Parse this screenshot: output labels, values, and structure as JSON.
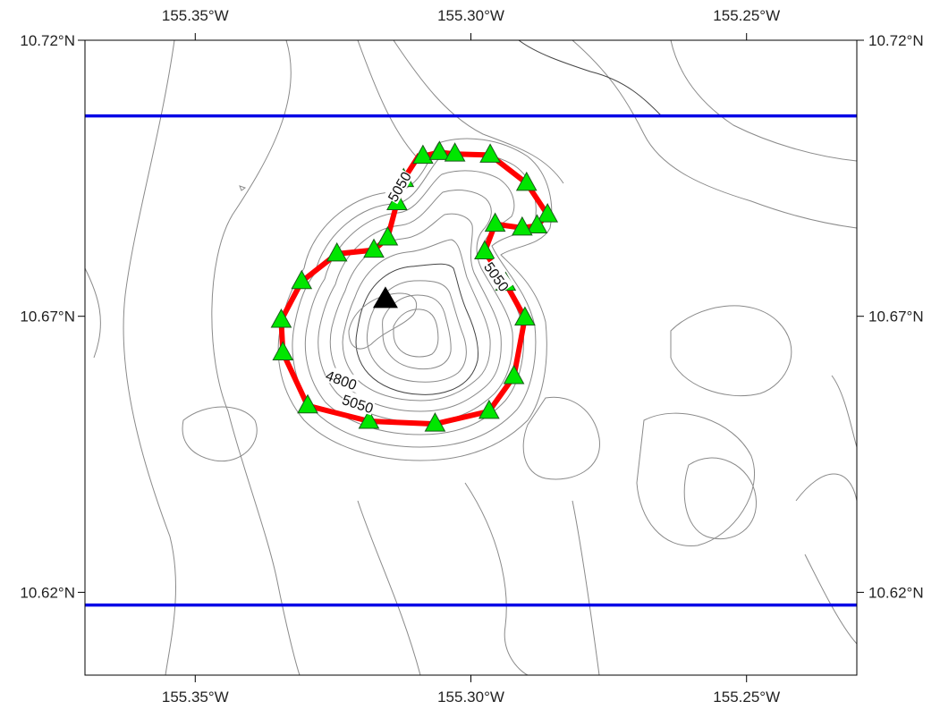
{
  "map": {
    "extent": {
      "lon_min": -155.37,
      "lon_max": -155.23,
      "lat_min": 10.605,
      "lat_max": 10.72
    },
    "lon_ticks": [
      {
        "value": -155.35,
        "label": "155.35°W"
      },
      {
        "value": -155.3,
        "label": "155.30°W"
      },
      {
        "value": -155.25,
        "label": "155.25°W"
      }
    ],
    "lat_ticks": [
      {
        "value": 10.72,
        "label": "10.72°N"
      },
      {
        "value": 10.67,
        "label": "10.67°N"
      },
      {
        "value": 10.62,
        "label": "10.62°N"
      }
    ],
    "boundary_lines": {
      "color": "#0000e6",
      "lats": [
        10.7063,
        10.6177
      ]
    },
    "track": {
      "color": "#ff0000",
      "points": [
        [
          -155.3087,
          10.699
        ],
        [
          -155.3057,
          10.6997
        ],
        [
          -155.3029,
          10.6994
        ],
        [
          -155.2965,
          10.6992
        ],
        [
          -155.2899,
          10.6941
        ],
        [
          -155.2861,
          10.6884
        ],
        [
          -155.288,
          10.6864
        ],
        [
          -155.2907,
          10.686
        ],
        [
          -155.2956,
          10.6867
        ],
        [
          -155.2975,
          10.6817
        ],
        [
          -155.2937,
          10.676
        ],
        [
          -155.2902,
          10.6697
        ],
        [
          -155.2922,
          10.6591
        ],
        [
          -155.2967,
          10.6528
        ],
        [
          -155.3065,
          10.6505
        ],
        [
          -155.3185,
          10.651
        ],
        [
          -155.3296,
          10.6538
        ],
        [
          -155.3341,
          10.6634
        ],
        [
          -155.3344,
          10.6693
        ],
        [
          -155.3307,
          10.6763
        ],
        [
          -155.3243,
          10.6813
        ],
        [
          -155.3176,
          10.682
        ],
        [
          -155.3151,
          10.6842
        ],
        [
          -155.3134,
          10.6906
        ],
        [
          -155.3122,
          10.6948
        ],
        [
          -155.3093,
          10.6993
        ]
      ]
    },
    "stations": {
      "color": "#00e600",
      "points": [
        [
          -155.3087,
          10.699
        ],
        [
          -155.3057,
          10.6997
        ],
        [
          -155.3029,
          10.6994
        ],
        [
          -155.2965,
          10.6992
        ],
        [
          -155.2899,
          10.6941
        ],
        [
          -155.2861,
          10.6884
        ],
        [
          -155.288,
          10.6864
        ],
        [
          -155.2907,
          10.686
        ],
        [
          -155.2956,
          10.6867
        ],
        [
          -155.2975,
          10.6817
        ],
        [
          -155.2937,
          10.676
        ],
        [
          -155.2902,
          10.6697
        ],
        [
          -155.2922,
          10.6591
        ],
        [
          -155.2967,
          10.6528
        ],
        [
          -155.3065,
          10.6505
        ],
        [
          -155.3185,
          10.651
        ],
        [
          -155.3296,
          10.6538
        ],
        [
          -155.3341,
          10.6634
        ],
        [
          -155.3344,
          10.6693
        ],
        [
          -155.3307,
          10.6763
        ],
        [
          -155.3243,
          10.6813
        ],
        [
          -155.3176,
          10.682
        ],
        [
          -155.3151,
          10.6842
        ],
        [
          -155.3134,
          10.6906
        ],
        [
          -155.3122,
          10.6948
        ]
      ]
    },
    "summit": {
      "lon": -155.3155,
      "lat": 10.6733,
      "color": "#000000"
    },
    "contour_labels": [
      {
        "text": "4800",
        "lon": -155.3235,
        "lat": 10.6585,
        "angle": 20
      },
      {
        "text": "5050",
        "lon": -155.3205,
        "lat": 10.6542,
        "angle": 18
      },
      {
        "text": "5050",
        "lon": -155.2953,
        "lat": 10.6772,
        "angle": 55
      },
      {
        "text": "5050",
        "lon": -155.313,
        "lat": 10.6935,
        "angle": -60
      }
    ]
  }
}
